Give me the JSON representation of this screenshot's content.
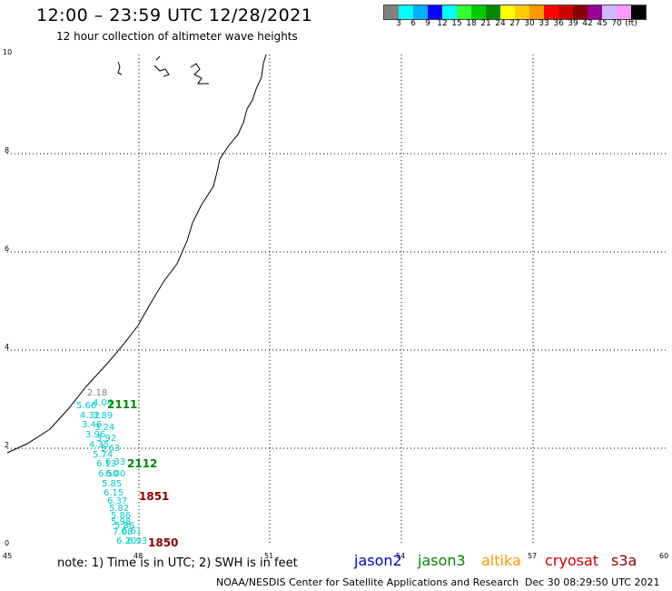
{
  "header": {
    "title": "12:00 – 23:59 UTC 12/28/2021",
    "subtitle": "12 hour collection of altimeter wave heights"
  },
  "scale": {
    "colors": [
      "#808080",
      "#00ffff",
      "#00b0ff",
      "#0000ff",
      "#00ffff",
      "#33ff33",
      "#00cc00",
      "#008800",
      "#ffff00",
      "#ffcc00",
      "#ff9900",
      "#ff0000",
      "#cc0000",
      "#880000",
      "#990099",
      "#ccbbff",
      "#ff99ff",
      "#000000"
    ],
    "labels": [
      "3",
      "6",
      "9",
      "12",
      "15",
      "18",
      "21",
      "24",
      "27",
      "30",
      "33",
      "36",
      "39",
      "42",
      "45",
      "70"
    ],
    "unit": "(ft)"
  },
  "axes": {
    "x_ticks": [
      "45",
      "48",
      "51",
      "54",
      "57",
      "60"
    ],
    "y_ticks": [
      "0",
      "2",
      "4",
      "6",
      "8",
      "10"
    ]
  },
  "track_labels": [
    {
      "text": "2111",
      "color": "#008800"
    },
    {
      "text": "2112",
      "color": "#008800"
    },
    {
      "text": "1851",
      "color": "#880000"
    },
    {
      "text": "1850",
      "color": "#880000"
    }
  ],
  "wave_heights": [
    {
      "text": "2.18",
      "color": "#808080"
    },
    {
      "text": "5.66",
      "color": "#00cccc"
    },
    {
      "text": "4.04",
      "color": "#00cccc"
    },
    {
      "text": "4.32",
      "color": "#00cccc"
    },
    {
      "text": "3.89",
      "color": "#00cccc"
    },
    {
      "text": "3.46",
      "color": "#00cccc"
    },
    {
      "text": "3.24",
      "color": "#00cccc"
    },
    {
      "text": "3.96",
      "color": "#00cccc"
    },
    {
      "text": "3.92",
      "color": "#00cccc"
    },
    {
      "text": "4.35",
      "color": "#00cccc"
    },
    {
      "text": "3.63",
      "color": "#00cccc"
    },
    {
      "text": "5.74",
      "color": "#00cccc"
    },
    {
      "text": "6.13",
      "color": "#00cccc"
    },
    {
      "text": "6.33",
      "color": "#00cccc"
    },
    {
      "text": "6.50",
      "color": "#00cccc"
    },
    {
      "text": "6.00",
      "color": "#00cccc"
    },
    {
      "text": "5.85",
      "color": "#00cccc"
    },
    {
      "text": "6.15",
      "color": "#00cccc"
    },
    {
      "text": "6.37",
      "color": "#00cccc"
    },
    {
      "text": "5.82",
      "color": "#00cccc"
    },
    {
      "text": "5.86",
      "color": "#00cccc"
    },
    {
      "text": "5.98",
      "color": "#00cccc"
    },
    {
      "text": "5.86",
      "color": "#00cccc"
    },
    {
      "text": "7.08",
      "color": "#00cccc"
    },
    {
      "text": "6.61",
      "color": "#00cccc"
    },
    {
      "text": "6.20",
      "color": "#00cccc"
    },
    {
      "text": "6.93",
      "color": "#00cccc"
    }
  ],
  "footer": {
    "note": "note: 1) Time is in UTC; 2) SWH is in feet",
    "satellites": [
      {
        "name": "jason2",
        "color": "#0000cc"
      },
      {
        "name": "jason3",
        "color": "#008800"
      },
      {
        "name": "altika",
        "color": "#ff9900"
      },
      {
        "name": "cryosat",
        "color": "#cc0000"
      },
      {
        "name": "s3a",
        "color": "#880000"
      }
    ],
    "credit": "NOAA/NESDIS Center for Satellite Applications and Research",
    "timestamp": "Dec 30 08:29:50 UTC 2021"
  }
}
